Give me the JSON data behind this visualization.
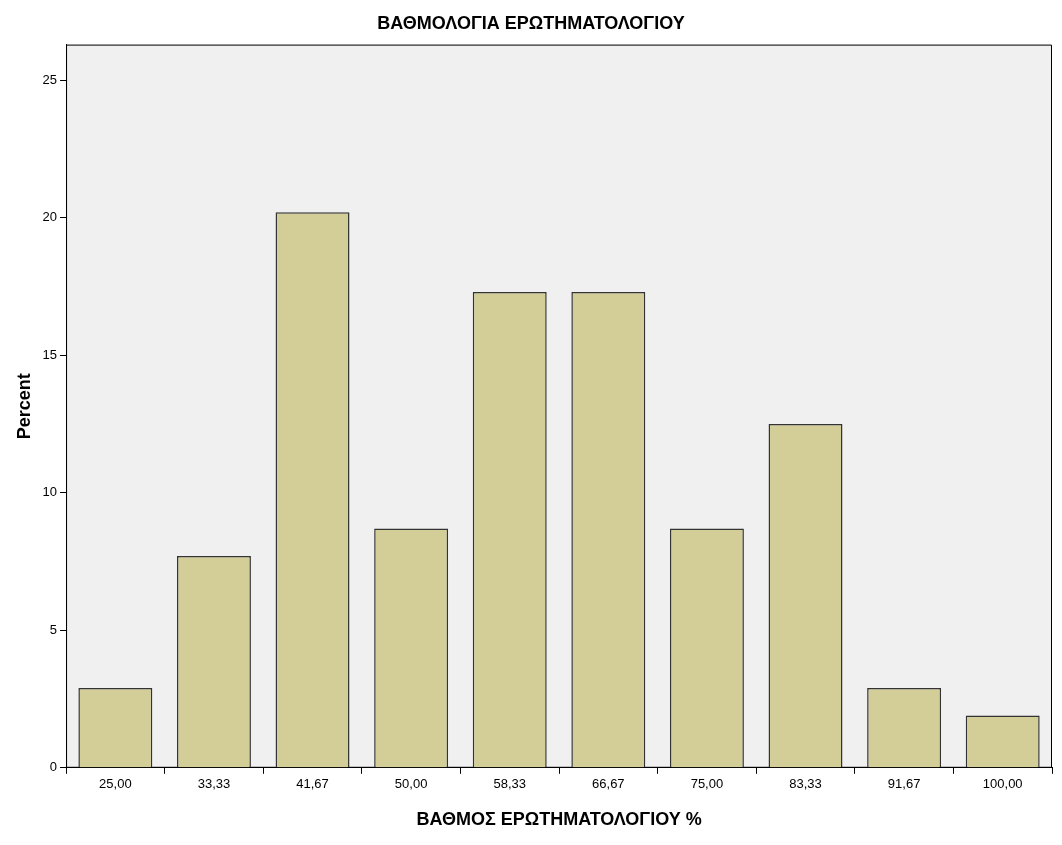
{
  "chart_data": {
    "type": "bar",
    "title": "ΒΑΘΜΟΛΟΓΙΑ ΕΡΩΤΗΜΑΤΟΛΟΓΙΟΥ",
    "xlabel": "ΒΑΘΜΟΣ ΕΡΩΤΗΜΑΤΟΛΟΓΙΟΥ %",
    "ylabel": "Percent",
    "categories": [
      "25,00",
      "33,33",
      "41,67",
      "50,00",
      "58,33",
      "66,67",
      "75,00",
      "83,33",
      "91,67",
      "100,00"
    ],
    "values": [
      2.9,
      7.7,
      20.2,
      8.7,
      17.3,
      17.3,
      8.7,
      12.5,
      2.9,
      1.9
    ],
    "color": "#d3ce97",
    "ylim": [
      0,
      26.3
    ],
    "yticks": [
      0,
      5,
      10,
      15,
      20,
      25
    ],
    "grid": false,
    "legend": false
  }
}
